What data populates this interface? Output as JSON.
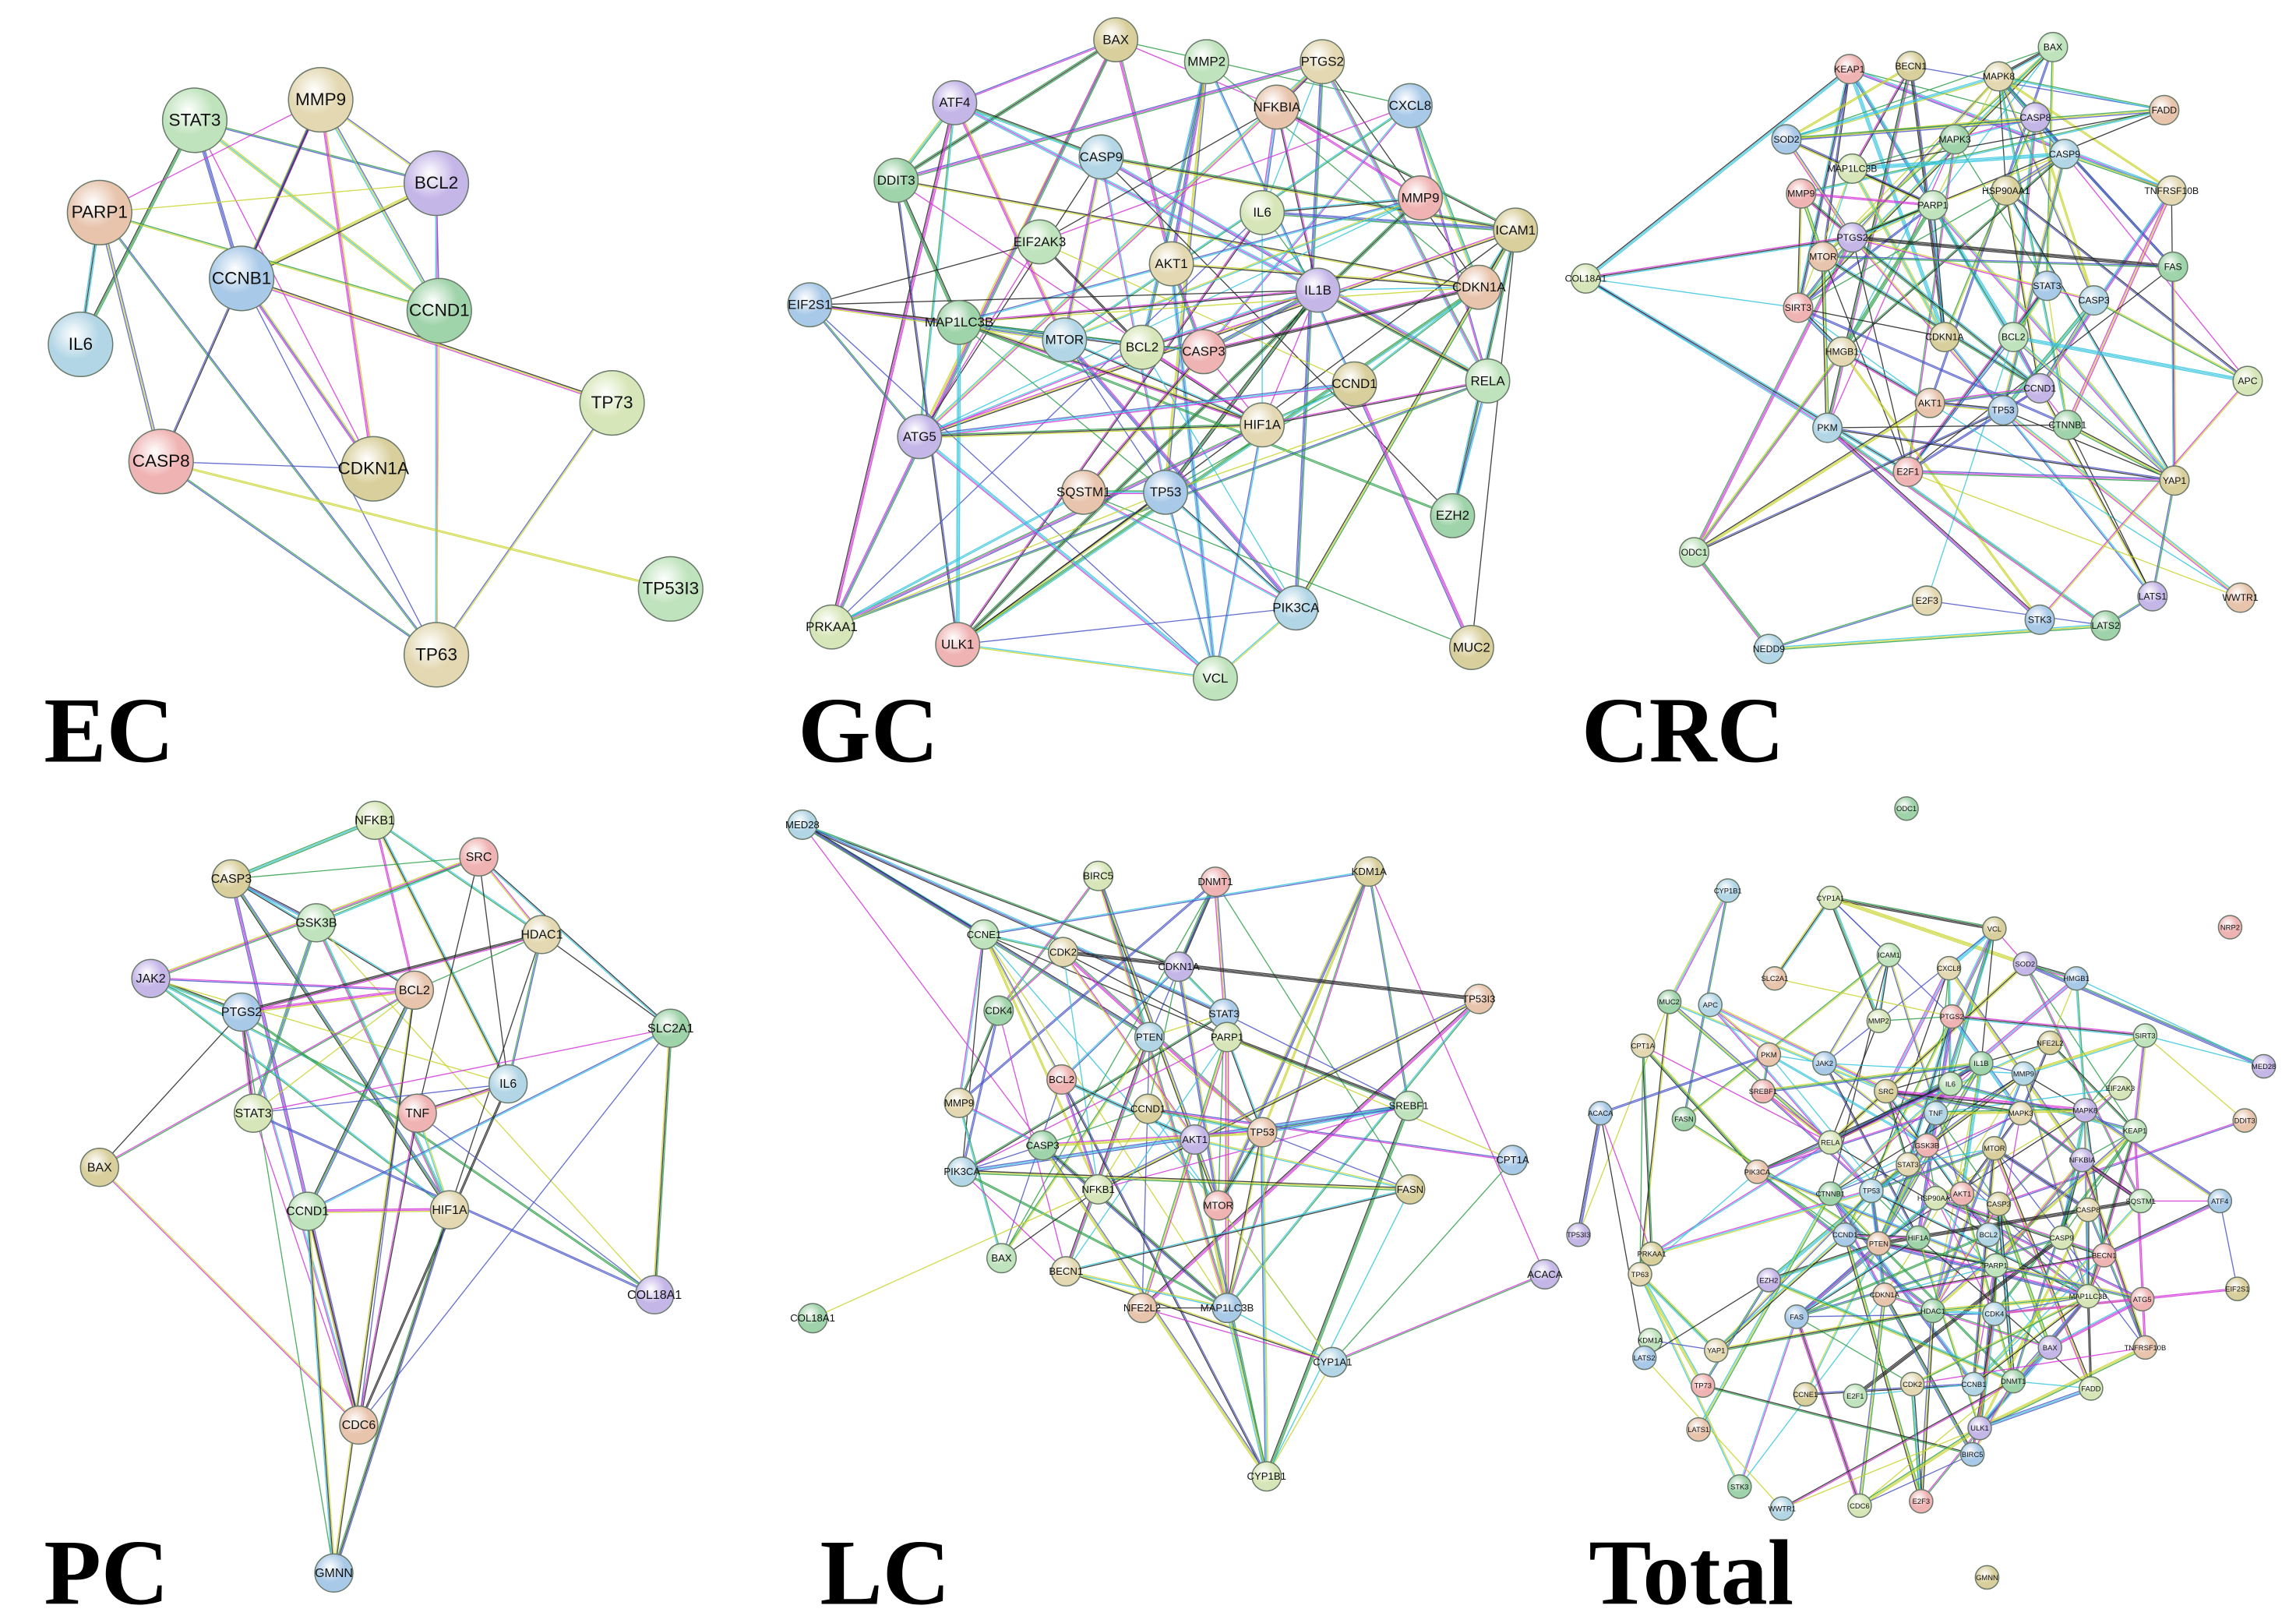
{
  "panels": [
    {
      "label": "EC",
      "nodes": [
        "STAT3",
        "MMP9",
        "BCL2",
        "PARP1",
        "CCNB1",
        "CCND1",
        "IL6",
        "TP73",
        "CASP8",
        "CDKN1A",
        "TP53I3",
        "TP63"
      ]
    },
    {
      "label": "GC",
      "nodes": [
        "BAX",
        "MMP2",
        "PTGS2",
        "ATF4",
        "NFKBIA",
        "CXCL8",
        "DDIT3",
        "CASP9",
        "IL6",
        "MMP9",
        "ICAM1",
        "EIF2AK3",
        "AKT1",
        "IL1B",
        "CDKN1A",
        "EIF2S1",
        "MAP1LC3B",
        "MTOR",
        "BCL2",
        "CASP3",
        "CCND1",
        "RELA",
        "HIF1A",
        "ATG5",
        "SQSTM1",
        "TP53",
        "EZH2",
        "PIK3CA",
        "PRKAA1",
        "ULK1",
        "MUC2",
        "VCL"
      ]
    },
    {
      "label": "CRC",
      "nodes": [
        "KEAP1",
        "BECN1",
        "BAX",
        "MAPK8",
        "CASP8",
        "FADD",
        "SOD2",
        "MAPK3",
        "CASP9",
        "MAP1LC3B",
        "MMP9",
        "HSP90AA1",
        "PARP1",
        "TNFRSF10B",
        "PTGS2",
        "MTOR",
        "STAT3",
        "FAS",
        "CASP3",
        "COL18A1",
        "SIRT3",
        "CDKN1A",
        "BCL2",
        "HMGB1",
        "CCND1",
        "AKT1",
        "TP53",
        "CTNNB1",
        "PKM",
        "APC",
        "E2F1",
        "YAP1",
        "ODC1",
        "E2F3",
        "LATS1",
        "WWTR1",
        "STK3",
        "LATS2",
        "NEDD9"
      ]
    },
    {
      "label": "PC",
      "nodes": [
        "NFKB1",
        "SRC",
        "CASP3",
        "GSK3B",
        "HDAC1",
        "JAK2",
        "BCL2",
        "PTGS2",
        "SLC2A1",
        "IL6",
        "STAT3",
        "TNF",
        "BAX",
        "CCND1",
        "HIF1A",
        "COL18A1",
        "CDC6",
        "GMNN"
      ]
    },
    {
      "label": "LC",
      "nodes": [
        "MED28",
        "BIRC5",
        "DNMT1",
        "KDM1A",
        "CCNE1",
        "CDK2",
        "CDKN1A",
        "TP53I3",
        "STAT3",
        "CDK4",
        "PTEN",
        "PARP1",
        "BCL2",
        "CCND1",
        "SREBF1",
        "MMP9",
        "AKT1",
        "TP53",
        "CPT1A",
        "CASP3",
        "PIK3CA",
        "NFKB1",
        "MTOR",
        "FASN",
        "BAX",
        "BECN1",
        "ACACA",
        "NFE2L2",
        "MAP1LC3B",
        "COL18A1",
        "CYP1A1",
        "CYP1B1"
      ]
    },
    {
      "label": "Total",
      "nodes": [
        "ODC1",
        "CYP1B1",
        "CYP1A1",
        "NRP2",
        "VCL",
        "ICAM1",
        "CXCL8",
        "SOD2",
        "SLC2A1",
        "HMGB1",
        "MUC2",
        "APC",
        "MMP2",
        "PTGS2",
        "NFE2L2",
        "SIRT3",
        "CPT1A",
        "MED28",
        "PKM",
        "JAK2",
        "IL1B",
        "MMP9",
        "EIF2AK3",
        "SREBF1",
        "SRC",
        "IL6",
        "MAPK3",
        "MAPK8",
        "DDIT3",
        "ACACA",
        "FASN",
        "TNF",
        "RELA",
        "GSK3B",
        "MTOR",
        "KEAP1",
        "STAT3",
        "NFKBIA",
        "PIK3CA",
        "ATF4",
        "CTNNB1",
        "TP53",
        "HSP90AA1",
        "AKT1",
        "CASP3",
        "SQSTM1",
        "CASP8",
        "TP53I3",
        "PTEN",
        "CCND1",
        "HIF1A",
        "BCL2",
        "CASP9",
        "BECN1",
        "PRKAA1",
        "PARP1",
        "TP63",
        "EZH2",
        "CDKN1A",
        "FAS",
        "HDAC1",
        "CDK4",
        "MAP1LC3B",
        "ATG5",
        "EIF2S1",
        "KDM1A",
        "YAP1",
        "BAX",
        "TNFRSF10B",
        "LATS2",
        "DNMT1",
        "CCNB1",
        "FADD",
        "TP73",
        "CCNE1",
        "E2F1",
        "CDK2",
        "ULK1",
        "LATS1",
        "BIRC5",
        "STK3",
        "WWTR1",
        "CDC6",
        "E2F3",
        "GMNN"
      ]
    }
  ]
}
